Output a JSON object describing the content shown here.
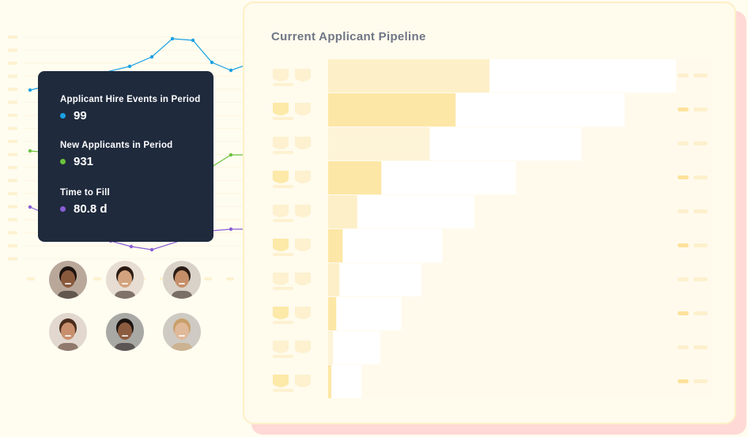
{
  "tooltip": {
    "metrics": [
      {
        "label": "Applicant Hire Events in Period",
        "value": "99",
        "color": "#1aa1e3"
      },
      {
        "label": "New Applicants in Period",
        "value": "931",
        "color": "#6cc23d"
      },
      {
        "label": "Time to Fill",
        "value": "80.8 d",
        "color": "#8a5ed6"
      }
    ]
  },
  "pipeline": {
    "title": "Current Applicant Pipeline",
    "bar_colors": [
      "#fdf0c8",
      "#fde7a6",
      "#fdf3d7",
      "#fde7a6",
      "#fdf0c8",
      "#fde7a6",
      "#fdf0c8",
      "#fde7a6",
      "#fdf3d7",
      "#fde7a6"
    ],
    "bars": [
      1.0,
      0.79,
      0.63,
      0.33,
      0.18,
      0.09,
      0.07,
      0.05,
      0.03,
      0.02
    ]
  },
  "avatars": [
    {
      "name": "avatar-man-1",
      "skin": "#8a5a3c",
      "hair": "#1c1410",
      "bg": "#b9a89a"
    },
    {
      "name": "avatar-woman-1",
      "skin": "#d2a37e",
      "hair": "#2a1a12",
      "bg": "#e7ddd3"
    },
    {
      "name": "avatar-man-2",
      "skin": "#c68f6a",
      "hair": "#2b1d15",
      "bg": "#d9d2c8"
    },
    {
      "name": "avatar-woman-2",
      "skin": "#c98f6d",
      "hair": "#4a2c1c",
      "bg": "#e2d8cf"
    },
    {
      "name": "avatar-man-3",
      "skin": "#8c5c40",
      "hair": "#1b1310",
      "bg": "#a8a8a5"
    },
    {
      "name": "avatar-woman-3",
      "skin": "#e0b99a",
      "hair": "#c9a06a",
      "bg": "#cfcac3"
    }
  ]
}
